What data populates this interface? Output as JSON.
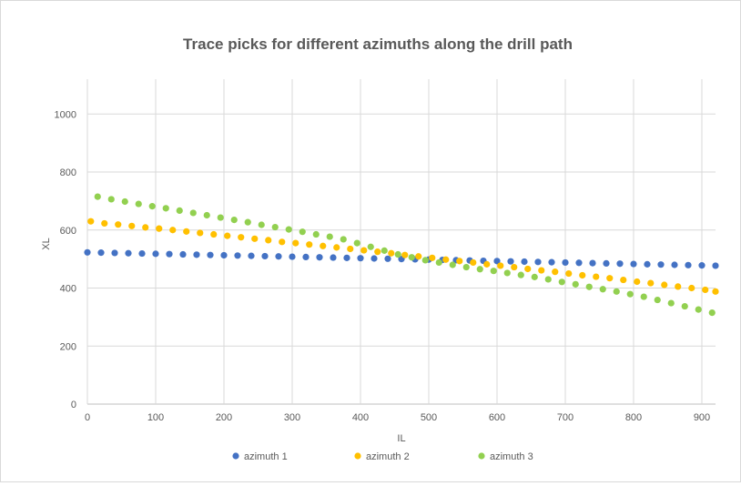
{
  "chart_data": {
    "type": "scatter",
    "title": "Trace picks for different azimuths along the drill path",
    "xlabel": "IL",
    "ylabel": "XL",
    "xlim": [
      0,
      920
    ],
    "ylim": [
      0,
      1120
    ],
    "xticks": [
      0,
      100,
      200,
      300,
      400,
      500,
      600,
      700,
      800,
      900
    ],
    "yticks": [
      0,
      200,
      400,
      600,
      800,
      1000
    ],
    "grid": true,
    "legend_position": "bottom",
    "series": [
      {
        "name": "azimuth 1",
        "color": "#4472c4",
        "points": [
          [
            0,
            523
          ],
          [
            20,
            522
          ],
          [
            40,
            521
          ],
          [
            60,
            520
          ],
          [
            80,
            519
          ],
          [
            100,
            518
          ],
          [
            120,
            517
          ],
          [
            140,
            516
          ],
          [
            160,
            515
          ],
          [
            180,
            514
          ],
          [
            200,
            513
          ],
          [
            220,
            512
          ],
          [
            240,
            511
          ],
          [
            260,
            510
          ],
          [
            280,
            509
          ],
          [
            300,
            508
          ],
          [
            320,
            507
          ],
          [
            340,
            506
          ],
          [
            360,
            505
          ],
          [
            380,
            504
          ],
          [
            400,
            503
          ],
          [
            420,
            502
          ],
          [
            440,
            501
          ],
          [
            460,
            500
          ],
          [
            480,
            499
          ],
          [
            500,
            498
          ],
          [
            520,
            497
          ],
          [
            540,
            496
          ],
          [
            560,
            495
          ],
          [
            580,
            494
          ],
          [
            600,
            493
          ],
          [
            620,
            492
          ],
          [
            640,
            491
          ],
          [
            660,
            490
          ],
          [
            680,
            489
          ],
          [
            700,
            488
          ],
          [
            720,
            487
          ],
          [
            740,
            486
          ],
          [
            760,
            485
          ],
          [
            780,
            484
          ],
          [
            800,
            483
          ],
          [
            820,
            482
          ],
          [
            840,
            481
          ],
          [
            860,
            480
          ],
          [
            880,
            479
          ],
          [
            900,
            478
          ],
          [
            920,
            477
          ]
        ]
      },
      {
        "name": "azimuth 2",
        "color": "#ffc000",
        "points": [
          [
            5,
            630
          ],
          [
            25,
            623
          ],
          [
            45,
            619
          ],
          [
            65,
            614
          ],
          [
            85,
            609
          ],
          [
            105,
            605
          ],
          [
            125,
            600
          ],
          [
            145,
            595
          ],
          [
            165,
            590
          ],
          [
            185,
            585
          ],
          [
            205,
            580
          ],
          [
            225,
            575
          ],
          [
            245,
            570
          ],
          [
            265,
            565
          ],
          [
            285,
            559
          ],
          [
            305,
            555
          ],
          [
            325,
            550
          ],
          [
            345,
            545
          ],
          [
            365,
            540
          ],
          [
            385,
            535
          ],
          [
            405,
            530
          ],
          [
            425,
            525
          ],
          [
            445,
            520
          ],
          [
            465,
            514
          ],
          [
            485,
            509
          ],
          [
            505,
            504
          ],
          [
            525,
            498
          ],
          [
            545,
            493
          ],
          [
            565,
            488
          ],
          [
            585,
            482
          ],
          [
            605,
            477
          ],
          [
            625,
            472
          ],
          [
            645,
            466
          ],
          [
            665,
            461
          ],
          [
            685,
            456
          ],
          [
            705,
            450
          ],
          [
            725,
            444
          ],
          [
            745,
            439
          ],
          [
            765,
            434
          ],
          [
            785,
            428
          ],
          [
            805,
            422
          ],
          [
            825,
            417
          ],
          [
            845,
            411
          ],
          [
            865,
            405
          ],
          [
            885,
            400
          ],
          [
            905,
            394
          ],
          [
            920,
            388
          ]
        ]
      },
      {
        "name": "azimuth 3",
        "color": "#92d050",
        "points": [
          [
            15,
            715
          ],
          [
            35,
            706
          ],
          [
            55,
            698
          ],
          [
            75,
            690
          ],
          [
            95,
            682
          ],
          [
            115,
            675
          ],
          [
            135,
            667
          ],
          [
            155,
            659
          ],
          [
            175,
            651
          ],
          [
            195,
            643
          ],
          [
            215,
            635
          ],
          [
            235,
            627
          ],
          [
            255,
            618
          ],
          [
            275,
            610
          ],
          [
            295,
            602
          ],
          [
            315,
            594
          ],
          [
            335,
            585
          ],
          [
            355,
            577
          ],
          [
            375,
            568
          ],
          [
            395,
            555
          ],
          [
            415,
            542
          ],
          [
            435,
            529
          ],
          [
            455,
            516
          ],
          [
            475,
            506
          ],
          [
            495,
            496
          ],
          [
            515,
            488
          ],
          [
            535,
            480
          ],
          [
            555,
            472
          ],
          [
            575,
            465
          ],
          [
            595,
            459
          ],
          [
            615,
            452
          ],
          [
            635,
            445
          ],
          [
            655,
            438
          ],
          [
            675,
            430
          ],
          [
            695,
            421
          ],
          [
            715,
            413
          ],
          [
            735,
            404
          ],
          [
            755,
            396
          ],
          [
            775,
            388
          ],
          [
            795,
            379
          ],
          [
            815,
            370
          ],
          [
            835,
            359
          ],
          [
            855,
            348
          ],
          [
            875,
            337
          ],
          [
            895,
            326
          ],
          [
            915,
            315
          ]
        ]
      }
    ]
  }
}
